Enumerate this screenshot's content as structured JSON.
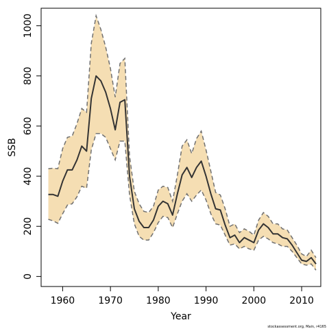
{
  "chart_data": {
    "type": "area",
    "title": "",
    "xlabel": "Year",
    "ylabel": "SSB",
    "xlim": [
      1955.5,
      2014
    ],
    "ylim": [
      -40,
      1070
    ],
    "x_ticks": [
      1960,
      1970,
      1980,
      1990,
      2000,
      2010
    ],
    "y_ticks": [
      0,
      200,
      400,
      600,
      800,
      1000
    ],
    "x_tick_labels": [
      "1960",
      "1970",
      "1980",
      "1990",
      "2000",
      "2010"
    ],
    "y_tick_labels": [
      "0",
      "200",
      "400",
      "600",
      "800",
      "1000"
    ],
    "grid": false,
    "legend": "none",
    "band_color": "#F5DEB3",
    "line_color": "#333333",
    "bound_color": "#707070",
    "x": [
      1957,
      1958,
      1959,
      1960,
      1961,
      1962,
      1963,
      1964,
      1965,
      1966,
      1967,
      1968,
      1969,
      1970,
      1971,
      1972,
      1973,
      1974,
      1975,
      1976,
      1977,
      1978,
      1979,
      1980,
      1981,
      1982,
      1983,
      1984,
      1985,
      1986,
      1987,
      1988,
      1989,
      1990,
      1991,
      1992,
      1993,
      1994,
      1995,
      1996,
      1997,
      1998,
      1999,
      2000,
      2001,
      2002,
      2003,
      2004,
      2005,
      2006,
      2007,
      2008,
      2009,
      2010,
      2011,
      2012,
      2013
    ],
    "series": [
      {
        "values": [
          327,
          327,
          320,
          380,
          425,
          425,
          465,
          520,
          500,
          710,
          800,
          780,
          735,
          670,
          585,
          695,
          705,
          400,
          270,
          220,
          195,
          195,
          225,
          280,
          300,
          290,
          245,
          330,
          405,
          435,
          395,
          435,
          460,
          400,
          330,
          270,
          265,
          205,
          155,
          165,
          135,
          155,
          145,
          135,
          185,
          210,
          195,
          170,
          170,
          155,
          150,
          125,
          95,
          65,
          60,
          75,
          50
        ]
      },
      {
        "values": [
          430,
          432,
          430,
          510,
          555,
          560,
          610,
          670,
          655,
          930,
          1040,
          985,
          915,
          830,
          715,
          850,
          870,
          480,
          340,
          290,
          260,
          255,
          280,
          345,
          360,
          355,
          300,
          405,
          520,
          545,
          490,
          550,
          580,
          505,
          420,
          335,
          325,
          270,
          200,
          210,
          175,
          190,
          180,
          165,
          225,
          255,
          240,
          210,
          210,
          190,
          185,
          155,
          125,
          90,
          80,
          105,
          75
        ]
      },
      {
        "values": [
          228,
          222,
          212,
          250,
          285,
          290,
          318,
          360,
          352,
          505,
          570,
          570,
          555,
          510,
          465,
          540,
          540,
          325,
          210,
          160,
          145,
          145,
          175,
          215,
          240,
          235,
          195,
          250,
          300,
          330,
          300,
          325,
          345,
          305,
          250,
          210,
          205,
          165,
          125,
          130,
          110,
          120,
          110,
          105,
          145,
          160,
          150,
          135,
          130,
          120,
          120,
          100,
          75,
          50,
          45,
          50,
          25
        ]
      }
    ]
  },
  "credit": "stockassessment.org, Main, r4165"
}
